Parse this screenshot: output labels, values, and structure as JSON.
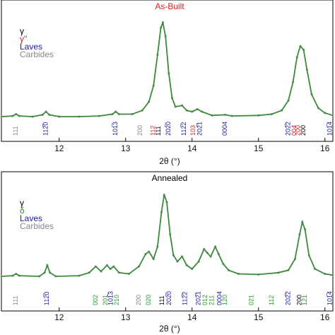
{
  "chart_data": [
    {
      "type": "line",
      "title": "As-Built",
      "title_color": "#d62020",
      "x_label": "2θ (°)",
      "xlim": [
        11.13,
        16.12
      ],
      "xticks": [
        12,
        13,
        14,
        15,
        16
      ],
      "ylim": [
        0,
        100
      ],
      "color": "#3a8a3a",
      "marker_color": "#999999",
      "legend_position": "upper left",
      "legend": [
        {
          "label": "γ",
          "color": "#000000"
        },
        {
          "label": "γ''",
          "color": "#d62020"
        },
        {
          "label": "Laves",
          "color": "#1a1aa0"
        },
        {
          "label": "Carbides",
          "color": "#888888"
        }
      ],
      "x": [
        11.13,
        11.3,
        11.35,
        11.4,
        11.6,
        11.75,
        11.8,
        11.85,
        12.0,
        12.3,
        12.6,
        12.8,
        12.85,
        12.9,
        13.1,
        13.25,
        13.35,
        13.42,
        13.48,
        13.53,
        13.56,
        13.6,
        13.65,
        13.7,
        13.75,
        13.85,
        13.92,
        14.0,
        14.08,
        14.15,
        14.3,
        14.5,
        14.6,
        15.0,
        15.2,
        15.35,
        15.45,
        15.52,
        15.58,
        15.63,
        15.68,
        15.73,
        15.8,
        15.9,
        16.0,
        16.12
      ],
      "values": [
        20,
        20.5,
        22,
        20.5,
        20,
        21.5,
        24,
        21.5,
        20,
        20,
        20.5,
        22,
        24,
        22,
        22,
        25,
        32,
        45,
        70,
        92,
        96,
        85,
        55,
        35,
        28,
        29,
        25,
        24,
        26,
        24,
        21,
        21.5,
        20.5,
        21,
        22,
        25,
        33,
        48,
        68,
        77,
        74,
        58,
        38,
        27,
        23,
        21
      ],
      "annotations": [
        {
          "text": "111",
          "x": 11.35,
          "color": "#888888"
        },
        {
          "text": "112̅0",
          "x": 11.8,
          "color": "#1a1aa0"
        },
        {
          "text": "101̅3",
          "x": 12.85,
          "color": "#1a1aa0"
        },
        {
          "text": "200",
          "x": 13.22,
          "color": "#888888"
        },
        {
          "text": "112",
          "x": 13.42,
          "color": "#d62020"
        },
        {
          "text": "111",
          "x": 13.5,
          "color": "#000000"
        },
        {
          "text": "202̅0",
          "x": 13.65,
          "color": "#1a1aa0"
        },
        {
          "text": "112̅2",
          "x": 13.88,
          "color": "#1a1aa0"
        },
        {
          "text": "103",
          "x": 14.02,
          "color": "#d62020"
        },
        {
          "text": "202̅1",
          "x": 14.12,
          "color": "#1a1aa0"
        },
        {
          "text": "0004",
          "x": 14.5,
          "color": "#1a1aa0"
        },
        {
          "text": "202̅2",
          "x": 15.45,
          "color": "#1a1aa0"
        },
        {
          "text": "004",
          "x": 15.54,
          "color": "#d62020"
        },
        {
          "text": "200",
          "x": 15.6,
          "color": "#d62020"
        },
        {
          "text": "200",
          "x": 15.68,
          "color": "#000000"
        },
        {
          "text": "101̅4",
          "x": 16.08,
          "color": "#1a1aa0"
        }
      ]
    },
    {
      "type": "line",
      "title": "Annealed",
      "title_color": "#000000",
      "x_label": "2θ (°)",
      "xlim": [
        11.13,
        16.12
      ],
      "xticks": [
        12,
        13,
        14,
        15,
        16
      ],
      "ylim": [
        0,
        100
      ],
      "color": "#3a8a3a",
      "marker_color": "#999999",
      "legend_position": "upper left",
      "legend": [
        {
          "label": "γ",
          "color": "#000000"
        },
        {
          "label": "δ",
          "color": "#2a9a2a"
        },
        {
          "label": "Laves",
          "color": "#1a1aa0"
        },
        {
          "label": "Carbides",
          "color": "#888888"
        }
      ],
      "x": [
        11.13,
        11.3,
        11.35,
        11.4,
        11.7,
        11.78,
        11.82,
        11.86,
        11.95,
        12.3,
        12.45,
        12.55,
        12.63,
        12.72,
        12.77,
        12.82,
        12.9,
        13.05,
        13.2,
        13.3,
        13.35,
        13.42,
        13.48,
        13.54,
        13.58,
        13.62,
        13.67,
        13.72,
        13.78,
        13.85,
        13.92,
        14.0,
        14.1,
        14.18,
        14.23,
        14.28,
        14.35,
        14.4,
        14.47,
        14.55,
        14.7,
        15.0,
        15.3,
        15.45,
        15.55,
        15.62,
        15.66,
        15.7,
        15.76,
        15.85,
        16.0,
        16.12
      ],
      "values": [
        28,
        28.5,
        30,
        28.5,
        28,
        31,
        37,
        31,
        28,
        28.5,
        31,
        36,
        32,
        37,
        34,
        36,
        31,
        30,
        36,
        46,
        48,
        42,
        52,
        80,
        94,
        88,
        62,
        45,
        40,
        44,
        37,
        34,
        40,
        50,
        47,
        44,
        52,
        46,
        38,
        33,
        30,
        29.5,
        31,
        33,
        42,
        62,
        72,
        66,
        45,
        34,
        30,
        29
      ],
      "annotations": [
        {
          "text": "111",
          "x": 11.35,
          "color": "#888888"
        },
        {
          "text": "112̅0",
          "x": 11.82,
          "color": "#1a1aa0"
        },
        {
          "text": "002",
          "x": 12.55,
          "color": "#2a9a2a"
        },
        {
          "text": "201",
          "x": 12.7,
          "color": "#2a9a2a"
        },
        {
          "text": "101̅3",
          "x": 12.78,
          "color": "#1a1aa0"
        },
        {
          "text": "210",
          "x": 12.87,
          "color": "#2a9a2a"
        },
        {
          "text": "200",
          "x": 13.2,
          "color": "#888888"
        },
        {
          "text": "020",
          "x": 13.35,
          "color": "#2a9a2a"
        },
        {
          "text": "111",
          "x": 13.55,
          "color": "#000000"
        },
        {
          "text": "202̅0",
          "x": 13.66,
          "color": "#1a1aa0"
        },
        {
          "text": "112̅2",
          "x": 13.9,
          "color": "#1a1aa0"
        },
        {
          "text": "202̅1",
          "x": 14.1,
          "color": "#1a1aa0"
        },
        {
          "text": "012",
          "x": 14.2,
          "color": "#2a9a2a"
        },
        {
          "text": "211",
          "x": 14.3,
          "color": "#2a9a2a"
        },
        {
          "text": "0004",
          "x": 14.42,
          "color": "#1a1aa0"
        },
        {
          "text": "120",
          "x": 14.5,
          "color": "#2a9a2a"
        },
        {
          "text": "021",
          "x": 14.9,
          "color": "#2a9a2a"
        },
        {
          "text": "112",
          "x": 15.2,
          "color": "#2a9a2a"
        },
        {
          "text": "202̅2",
          "x": 15.45,
          "color": "#1a1aa0"
        },
        {
          "text": "200",
          "x": 15.62,
          "color": "#000000"
        },
        {
          "text": "121",
          "x": 15.7,
          "color": "#2a9a2a"
        },
        {
          "text": "101̅4",
          "x": 16.08,
          "color": "#1a1aa0"
        }
      ]
    }
  ]
}
